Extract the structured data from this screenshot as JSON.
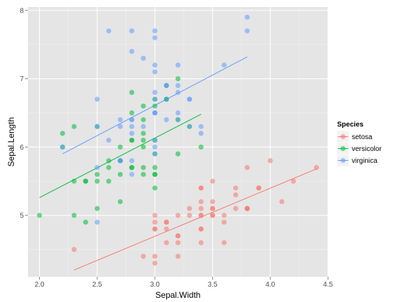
{
  "chart_data": {
    "type": "scatter",
    "xlabel": "Sepal.Width",
    "ylabel": "Sepal.Length",
    "xlim": [
      1.9,
      4.5
    ],
    "ylim": [
      4.1,
      8.05
    ],
    "x_ticks": [
      {
        "value": 2.0,
        "label": "2.0"
      },
      {
        "value": 2.5,
        "label": "2.5"
      },
      {
        "value": 3.0,
        "label": "3.0"
      },
      {
        "value": 3.5,
        "label": "3.5"
      },
      {
        "value": 4.0,
        "label": "4.0"
      },
      {
        "value": 4.5,
        "label": "4.5"
      }
    ],
    "y_ticks": [
      {
        "value": 5,
        "label": "5"
      },
      {
        "value": 6,
        "label": "6"
      },
      {
        "value": 7,
        "label": "7"
      },
      {
        "value": 8,
        "label": "8"
      }
    ],
    "background": "#e5e5e5",
    "grid": true,
    "legend": {
      "title": "Species",
      "position": "right"
    },
    "series": [
      {
        "name": "setosa",
        "color": "#f8766d",
        "points": [
          [
            3.5,
            5.1
          ],
          [
            3.0,
            4.9
          ],
          [
            3.2,
            4.7
          ],
          [
            3.1,
            4.6
          ],
          [
            3.6,
            5.0
          ],
          [
            3.9,
            5.4
          ],
          [
            3.4,
            4.6
          ],
          [
            3.4,
            5.0
          ],
          [
            2.9,
            4.4
          ],
          [
            3.1,
            4.9
          ],
          [
            3.7,
            5.4
          ],
          [
            3.4,
            4.8
          ],
          [
            3.0,
            4.8
          ],
          [
            3.0,
            4.3
          ],
          [
            4.0,
            5.8
          ],
          [
            4.4,
            5.7
          ],
          [
            3.9,
            5.4
          ],
          [
            3.5,
            5.1
          ],
          [
            3.8,
            5.7
          ],
          [
            3.8,
            5.1
          ],
          [
            3.4,
            5.4
          ],
          [
            3.7,
            5.1
          ],
          [
            3.6,
            4.6
          ],
          [
            3.3,
            5.1
          ],
          [
            3.4,
            4.8
          ],
          [
            3.0,
            5.0
          ],
          [
            3.4,
            5.0
          ],
          [
            3.5,
            5.2
          ],
          [
            3.4,
            5.2
          ],
          [
            3.2,
            4.7
          ],
          [
            3.1,
            4.8
          ],
          [
            3.4,
            5.4
          ],
          [
            4.1,
            5.2
          ],
          [
            4.2,
            5.5
          ],
          [
            3.1,
            4.9
          ],
          [
            3.2,
            5.0
          ],
          [
            3.5,
            5.5
          ],
          [
            3.6,
            4.9
          ],
          [
            3.0,
            4.4
          ],
          [
            3.4,
            5.1
          ],
          [
            3.5,
            5.0
          ],
          [
            2.3,
            4.5
          ],
          [
            3.2,
            4.4
          ],
          [
            3.5,
            5.0
          ],
          [
            3.8,
            5.1
          ],
          [
            3.0,
            4.8
          ],
          [
            3.8,
            5.1
          ],
          [
            3.2,
            4.6
          ],
          [
            3.7,
            5.3
          ],
          [
            3.3,
            5.0
          ]
        ],
        "fit": {
          "x": [
            2.3,
            4.4
          ],
          "y": [
            4.2,
            5.68
          ]
        }
      },
      {
        "name": "versicolor",
        "color": "#00ba38",
        "points": [
          [
            3.2,
            7.0
          ],
          [
            3.2,
            6.4
          ],
          [
            3.1,
            6.9
          ],
          [
            2.3,
            5.5
          ],
          [
            2.8,
            6.5
          ],
          [
            2.8,
            5.7
          ],
          [
            3.3,
            6.3
          ],
          [
            2.4,
            4.9
          ],
          [
            2.9,
            6.6
          ],
          [
            2.7,
            5.2
          ],
          [
            2.0,
            5.0
          ],
          [
            3.0,
            5.9
          ],
          [
            2.2,
            6.0
          ],
          [
            2.9,
            6.1
          ],
          [
            2.9,
            5.6
          ],
          [
            3.1,
            6.7
          ],
          [
            3.0,
            5.6
          ],
          [
            2.7,
            5.8
          ],
          [
            2.2,
            6.2
          ],
          [
            2.5,
            5.6
          ],
          [
            3.2,
            5.9
          ],
          [
            2.8,
            6.1
          ],
          [
            2.5,
            6.3
          ],
          [
            2.8,
            6.1
          ],
          [
            2.9,
            6.4
          ],
          [
            3.0,
            6.6
          ],
          [
            2.8,
            6.8
          ],
          [
            3.0,
            6.7
          ],
          [
            2.9,
            6.0
          ],
          [
            2.6,
            5.7
          ],
          [
            2.4,
            5.5
          ],
          [
            2.4,
            5.5
          ],
          [
            2.7,
            5.8
          ],
          [
            2.7,
            6.0
          ],
          [
            3.0,
            5.4
          ],
          [
            3.4,
            6.0
          ],
          [
            3.1,
            6.7
          ],
          [
            2.3,
            6.3
          ],
          [
            3.0,
            5.6
          ],
          [
            2.5,
            5.5
          ],
          [
            2.6,
            5.5
          ],
          [
            3.0,
            6.1
          ],
          [
            2.6,
            5.8
          ],
          [
            2.3,
            5.0
          ],
          [
            2.7,
            5.6
          ],
          [
            3.0,
            5.7
          ],
          [
            2.9,
            5.7
          ],
          [
            2.9,
            6.2
          ],
          [
            2.5,
            5.1
          ],
          [
            2.8,
            5.7
          ]
        ],
        "fit": {
          "x": [
            2.0,
            3.4
          ],
          "y": [
            5.26,
            6.48
          ]
        }
      },
      {
        "name": "virginica",
        "color": "#619cff",
        "points": [
          [
            3.3,
            6.3
          ],
          [
            2.7,
            5.8
          ],
          [
            3.0,
            7.1
          ],
          [
            2.9,
            6.3
          ],
          [
            3.0,
            6.5
          ],
          [
            3.0,
            7.6
          ],
          [
            2.5,
            4.9
          ],
          [
            2.9,
            7.3
          ],
          [
            2.5,
            6.7
          ],
          [
            3.6,
            7.2
          ],
          [
            3.2,
            6.5
          ],
          [
            2.7,
            6.4
          ],
          [
            3.0,
            6.8
          ],
          [
            2.5,
            5.7
          ],
          [
            2.8,
            5.8
          ],
          [
            3.2,
            6.4
          ],
          [
            3.0,
            6.5
          ],
          [
            3.8,
            7.7
          ],
          [
            2.6,
            7.7
          ],
          [
            2.2,
            6.0
          ],
          [
            3.2,
            6.9
          ],
          [
            2.8,
            5.6
          ],
          [
            2.8,
            7.7
          ],
          [
            2.7,
            6.3
          ],
          [
            3.3,
            6.7
          ],
          [
            3.2,
            7.2
          ],
          [
            2.8,
            6.2
          ],
          [
            3.0,
            6.1
          ],
          [
            2.8,
            6.4
          ],
          [
            3.0,
            7.2
          ],
          [
            2.8,
            7.4
          ],
          [
            3.8,
            7.9
          ],
          [
            2.8,
            6.4
          ],
          [
            2.8,
            6.3
          ],
          [
            2.6,
            6.1
          ],
          [
            3.0,
            7.7
          ],
          [
            3.4,
            6.3
          ],
          [
            3.1,
            6.4
          ],
          [
            3.0,
            6.0
          ],
          [
            3.1,
            6.9
          ],
          [
            3.1,
            6.7
          ],
          [
            3.1,
            6.9
          ],
          [
            2.7,
            5.8
          ],
          [
            3.2,
            6.8
          ],
          [
            3.3,
            6.7
          ],
          [
            3.0,
            6.7
          ],
          [
            2.5,
            6.3
          ],
          [
            3.0,
            6.5
          ],
          [
            3.4,
            6.2
          ],
          [
            3.0,
            5.9
          ]
        ],
        "fit": {
          "x": [
            2.2,
            3.8
          ],
          "y": [
            5.9,
            7.32
          ]
        }
      }
    ]
  }
}
